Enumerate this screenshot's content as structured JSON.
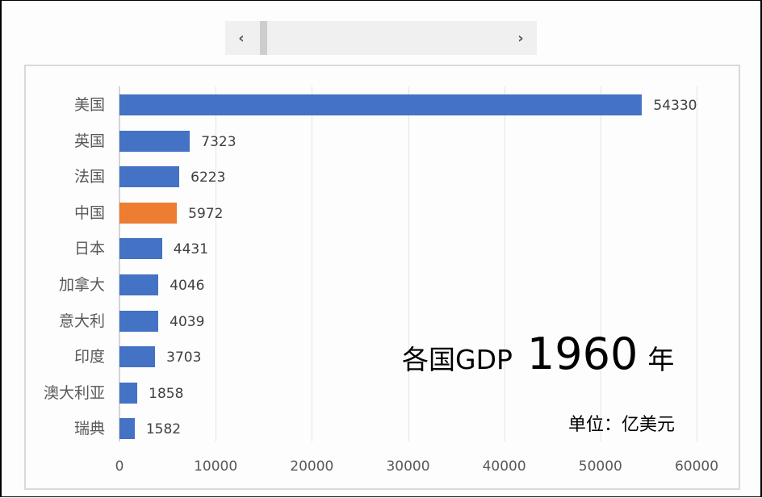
{
  "scrollbar": {
    "left_arrow": "‹",
    "right_arrow": "›"
  },
  "title": {
    "main": "各国GDP",
    "year": "1960",
    "suffix": "年"
  },
  "unit": "单位：亿美元",
  "colors": {
    "default_bar": "#4472c4",
    "highlight_bar": "#ed7d31"
  },
  "chart_data": {
    "type": "bar",
    "orientation": "horizontal",
    "title": "各国GDP 1960 年",
    "subtitle": "单位：亿美元",
    "categories": [
      "美国",
      "英国",
      "法国",
      "中国",
      "日本",
      "加拿大",
      "意大利",
      "印度",
      "澳大利亚",
      "瑞典"
    ],
    "values": [
      54330,
      7323,
      6223,
      5972,
      4431,
      4046,
      4039,
      3703,
      1858,
      1582
    ],
    "highlight": "中国",
    "xlabel": "",
    "ylabel": "",
    "xlim": [
      0,
      60000
    ],
    "xticks": [
      "0",
      "10000",
      "20000",
      "30000",
      "40000",
      "50000",
      "60000"
    ],
    "grid": true,
    "data_labels": true
  }
}
